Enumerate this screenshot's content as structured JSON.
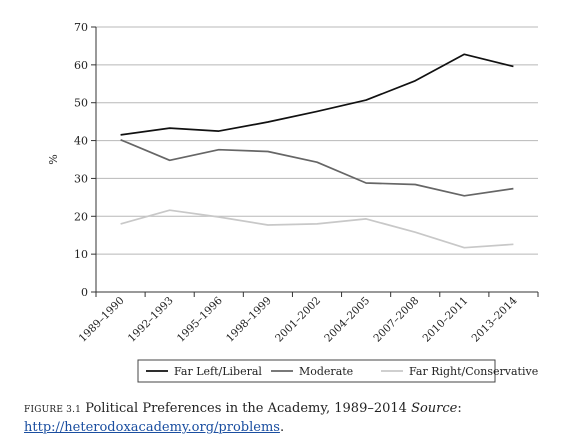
{
  "chart_data": {
    "type": "line",
    "ylabel": "%",
    "ylim": [
      0,
      70
    ],
    "yticks": [
      0,
      10,
      20,
      30,
      40,
      50,
      60,
      70
    ],
    "grid": true,
    "legend_position": "bottom",
    "categories": [
      "1989–1990",
      "1992–1993",
      "1995–1996",
      "1998–1999",
      "2001–2002",
      "2004–2005",
      "2007–2008",
      "2010–2011",
      "2013–2014"
    ],
    "series": [
      {
        "name": "Far Left/Liberal",
        "color": "#111111",
        "values": [
          41.5,
          43.3,
          42.5,
          44.9,
          47.7,
          50.7,
          55.8,
          62.8,
          59.6
        ]
      },
      {
        "name": "Moderate",
        "color": "#666666",
        "values": [
          40.2,
          34.8,
          37.6,
          37.1,
          34.3,
          28.8,
          28.4,
          25.4,
          27.3
        ]
      },
      {
        "name": "Far Right/Conservative",
        "color": "#c8c8c8",
        "values": [
          18.0,
          21.6,
          19.8,
          17.7,
          18.0,
          19.3,
          15.8,
          11.7,
          12.6
        ]
      }
    ]
  },
  "caption": {
    "figure_label": "FIGURE 3.1",
    "title": "Political Preferences in the Academy, 1989–2014",
    "source_label": "Source",
    "source_suffix": ":",
    "link_text": "http://heterodoxacademy.org/problems",
    "link_suffix": "."
  }
}
